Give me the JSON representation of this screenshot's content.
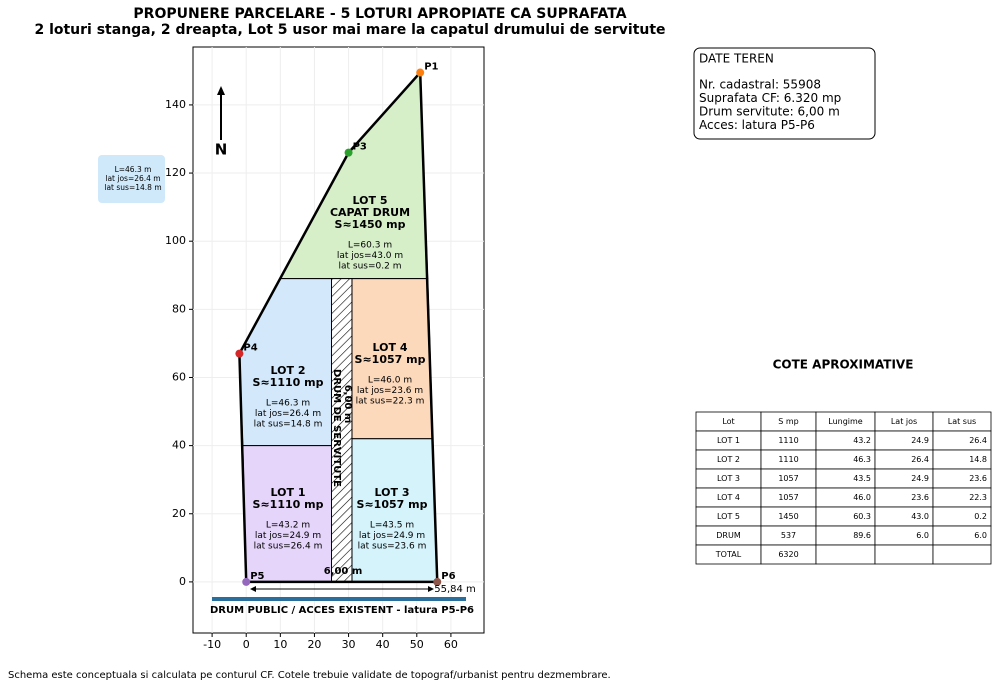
{
  "header": {
    "title": "PROPUNERE PARCELARE - 5 LOTURI APROPIATE CA SUPRAFATA",
    "subtitle": "2 loturi stanga, 2 dreapta, Lot 5 usor mai mare la capatul drumului de servitute"
  },
  "plot": {
    "xlim": [
      -15.6,
      69.7
    ],
    "ylim": [
      -15,
      157
    ],
    "xticks": [
      -10,
      0,
      10,
      20,
      30,
      40,
      50,
      60
    ],
    "yticks": [
      0,
      20,
      40,
      60,
      80,
      100,
      120,
      140
    ],
    "grid": true,
    "north": "N",
    "points": [
      {
        "label": "P1",
        "color": "#ff7f0e"
      },
      {
        "label": "P3",
        "color": "#2ca02c"
      },
      {
        "label": "P4",
        "color": "#d62728"
      },
      {
        "label": "P5",
        "color": "#9467bd"
      },
      {
        "label": "P6",
        "color": "#8c564b"
      }
    ],
    "lots": [
      {
        "lines": [
          "LOT 5",
          "CAPAT DRUM",
          "S≈1450 mp"
        ],
        "details": [
          "L=60.3 m",
          "lat jos=43.0 m",
          "lat sus=0.2 m"
        ],
        "color": "#d6efc9"
      },
      {
        "lines": [
          "LOT 2",
          "S≈1110 mp"
        ],
        "details": [
          "L=46.3 m",
          "lat jos=26.4 m",
          "lat sus=14.8 m"
        ],
        "color": "#d3e9fb"
      },
      {
        "lines": [
          "LOT 4",
          "S≈1057 mp"
        ],
        "details": [
          "L=46.0 m",
          "lat jos=23.6 m",
          "lat sus=22.3 m"
        ],
        "color": "#fdd9bb"
      },
      {
        "lines": [
          "LOT 1",
          "S≈1110 mp"
        ],
        "details": [
          "L=43.2 m",
          "lat jos=24.9 m",
          "lat sus=26.4 m"
        ],
        "color": "#e6d5fa"
      },
      {
        "lines": [
          "LOT 3",
          "S≈1057 mp"
        ],
        "details": [
          "L=43.5 m",
          "lat jos=24.9 m",
          "lat sus=23.6 m"
        ],
        "color": "#d4f3fb"
      }
    ],
    "road_label": "DRUM DE SERVITUTE",
    "road_width_label": "6,00 m",
    "road_width_bottom": "6,00 m",
    "frontage_label": "55,84 m",
    "public_road": "DRUM PUBLIC / ACCES EXISTENT - latura P5-P6",
    "floating_box": [
      "L=46.3 m",
      "lat jos=26.4 m",
      "lat sus=14.8 m"
    ]
  },
  "info": {
    "title": "DATE TEREN",
    "lines": [
      "Nr. cadastral: 55908",
      "Suprafata CF: 6.320 mp",
      "Drum servitute: 6,00 m",
      "Acces: latura P5-P6"
    ]
  },
  "table": {
    "title": "COTE APROXIMATIVE",
    "header": [
      "Lot",
      "S mp",
      "Lungime",
      "Lat jos",
      "Lat sus"
    ],
    "rows": [
      [
        "LOT 1",
        "1110",
        "43.2",
        "24.9",
        "26.4"
      ],
      [
        "LOT 2",
        "1110",
        "46.3",
        "26.4",
        "14.8"
      ],
      [
        "LOT 3",
        "1057",
        "43.5",
        "24.9",
        "23.6"
      ],
      [
        "LOT 4",
        "1057",
        "46.0",
        "23.6",
        "22.3"
      ],
      [
        "LOT 5",
        "1450",
        "60.3",
        "43.0",
        "0.2"
      ],
      [
        "DRUM",
        "537",
        "89.6",
        "6.0",
        "6.0"
      ],
      [
        "TOTAL",
        "6320"
      ]
    ]
  },
  "footer": "Schema este conceptuala si calculata pe conturul CF. Cotele trebuie validate de topograf/urbanist pentru dezmembrare."
}
